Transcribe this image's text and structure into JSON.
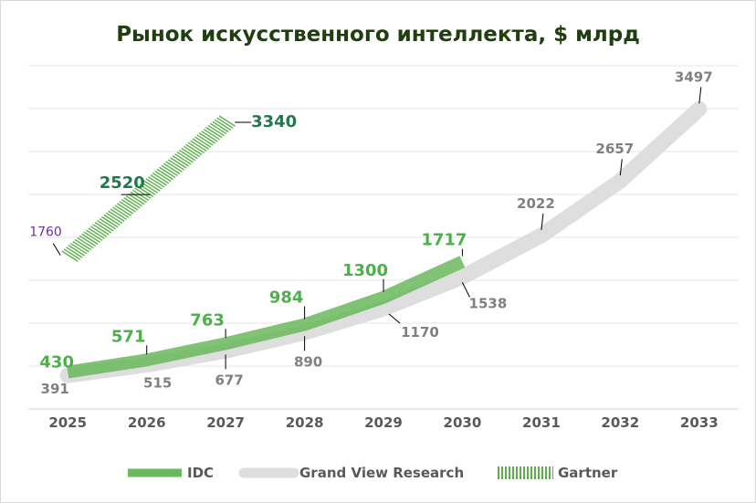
{
  "chart_data": {
    "type": "line",
    "title": "Рынок искусственного интеллекта, $ млрд",
    "xlabel": "",
    "ylabel": "",
    "categories": [
      "2025",
      "2026",
      "2027",
      "2028",
      "2029",
      "2030",
      "2031",
      "2032",
      "2033"
    ],
    "ylim": [
      0,
      4000
    ],
    "grid": true,
    "legend": "bottom",
    "series": [
      {
        "name": "IDC",
        "color": "#6ab95d",
        "points": [
          [
            2025,
            430
          ],
          [
            2026,
            571
          ],
          [
            2027,
            763
          ],
          [
            2028,
            984
          ],
          [
            2029,
            1300
          ],
          [
            2030,
            1717
          ]
        ],
        "labels": [
          "430",
          "571",
          "763",
          "984",
          "1300",
          "1717"
        ]
      },
      {
        "name": "Grand View Research",
        "color": "#dedede",
        "points": [
          [
            2025,
            391
          ],
          [
            2026,
            515
          ],
          [
            2027,
            677
          ],
          [
            2028,
            890
          ],
          [
            2029,
            1170
          ],
          [
            2030,
            1538
          ],
          [
            2031,
            2022
          ],
          [
            2032,
            2657
          ],
          [
            2033,
            3497
          ]
        ],
        "labels": [
          "391",
          "515",
          "677",
          "890",
          "1170",
          "1538",
          "2022",
          "2657",
          "3497"
        ]
      },
      {
        "name": "Gartner",
        "color": "#5ab04a",
        "points": [
          [
            2025,
            1760
          ],
          [
            2026,
            2520
          ],
          [
            2027,
            3340
          ]
        ],
        "labels": [
          "1760",
          "2520",
          "3340"
        ]
      }
    ]
  }
}
